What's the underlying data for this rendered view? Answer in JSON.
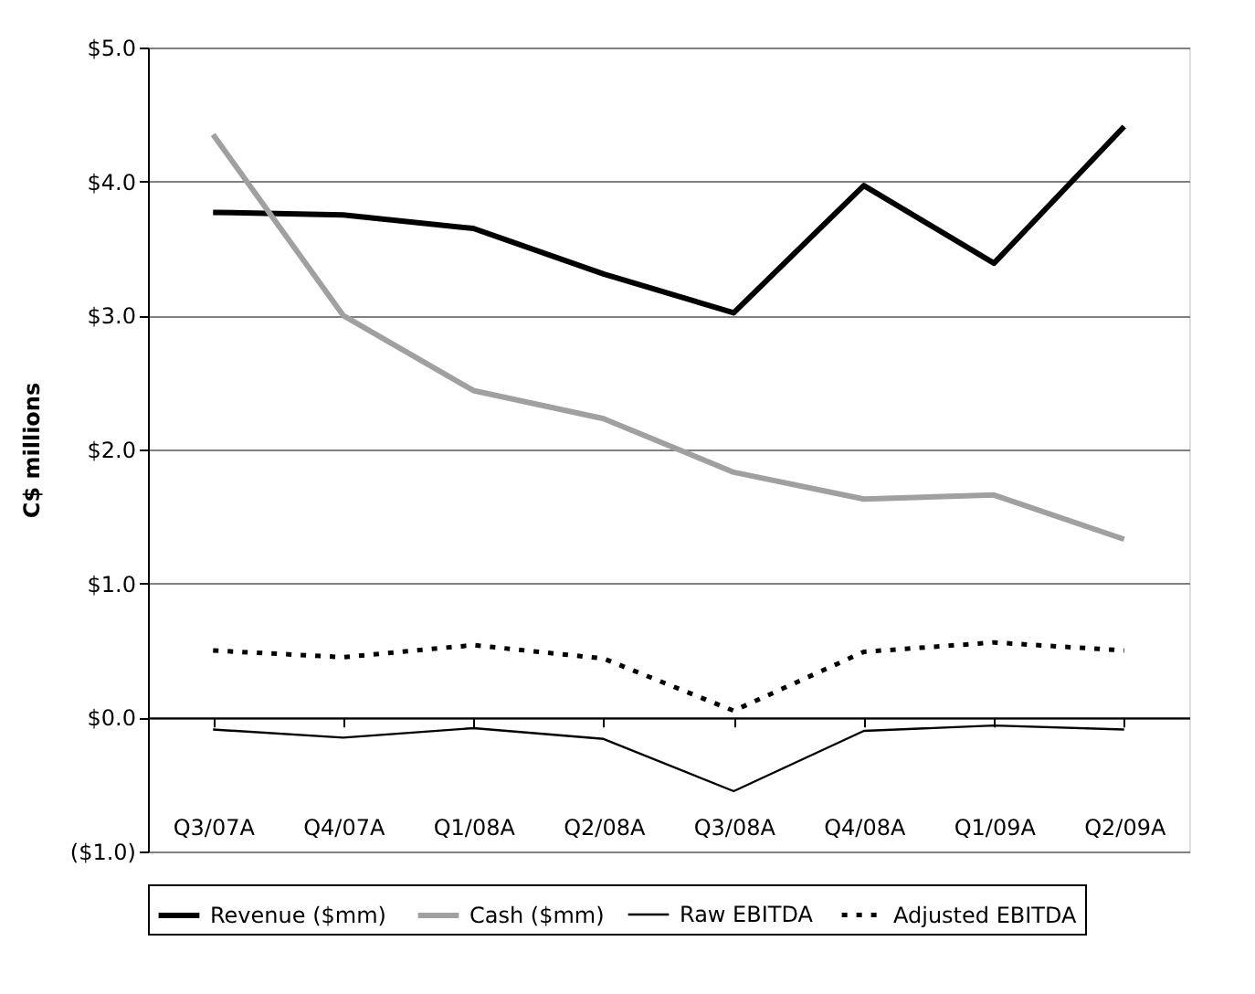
{
  "chart_data": {
    "type": "line",
    "ylabel": "C$ millions",
    "categories": [
      "Q3/07A",
      "Q4/07A",
      "Q1/08A",
      "Q2/08A",
      "Q3/08A",
      "Q4/08A",
      "Q1/09A",
      "Q2/09A"
    ],
    "series": [
      {
        "name": "Revenue ($mm)",
        "color": "#000000",
        "line_style": "solid",
        "values": [
          3.77,
          3.75,
          3.65,
          3.31,
          3.02,
          3.97,
          3.39,
          4.41
        ]
      },
      {
        "name": "Cash ($mm)",
        "color": "#a0a0a0",
        "line_style": "solid",
        "values": [
          4.35,
          3.0,
          2.44,
          2.23,
          1.83,
          1.63,
          1.66,
          1.33
        ]
      },
      {
        "name": "Raw EBITDA",
        "color": "#000000",
        "line_style": "solid",
        "values": [
          -0.09,
          -0.15,
          -0.08,
          -0.16,
          -0.55,
          -0.1,
          -0.06,
          -0.09
        ]
      },
      {
        "name": "Adjusted EBITDA",
        "color": "#000000",
        "line_style": "dotted",
        "values": [
          0.5,
          0.45,
          0.54,
          0.44,
          0.05,
          0.49,
          0.56,
          0.5
        ]
      }
    ],
    "ylim": [
      -1.0,
      5.0
    ],
    "yticks": [
      {
        "value": -1.0,
        "label": "($1.0)"
      },
      {
        "value": 0.0,
        "label": "$0.0"
      },
      {
        "value": 1.0,
        "label": "$1.0"
      },
      {
        "value": 2.0,
        "label": "$2.0"
      },
      {
        "value": 3.0,
        "label": "$3.0"
      },
      {
        "value": 4.0,
        "label": "$4.0"
      },
      {
        "value": 5.0,
        "label": "$5.0"
      }
    ],
    "grid": "y",
    "legend": "bottom",
    "marker": "none"
  }
}
